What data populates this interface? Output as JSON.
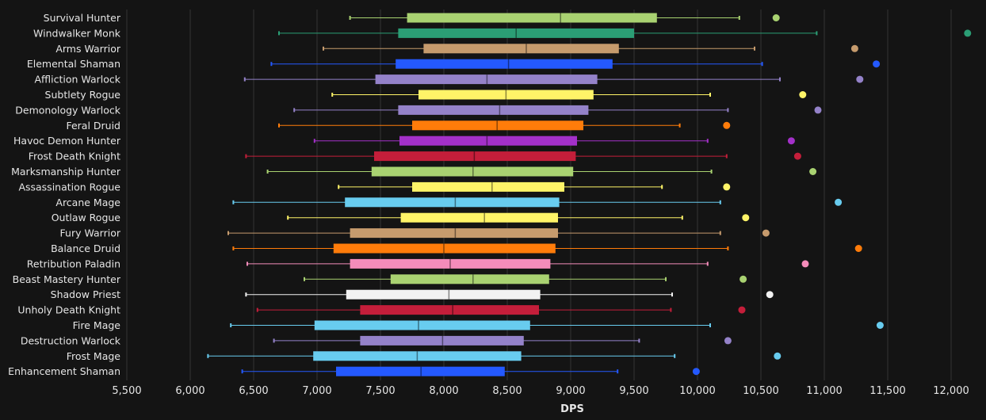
{
  "chart_data": {
    "type": "box",
    "xlabel": "DPS",
    "xlim": [
      5500,
      12200
    ],
    "xticks": [
      5500,
      6000,
      6500,
      7000,
      7500,
      8000,
      8500,
      9000,
      9500,
      10000,
      10500,
      11000,
      11500,
      12000
    ],
    "xtick_labels": [
      "5,500",
      "6,000",
      "6,500",
      "7,000",
      "7,500",
      "8,000",
      "8,500",
      "9,000",
      "9,500",
      "10,000",
      "10,500",
      "11,000",
      "11,500",
      "12,000"
    ],
    "grid": "vertical",
    "background": "#141414",
    "series": [
      {
        "name": "Survival Hunter",
        "color": "#a9d271",
        "min": 7260,
        "q1": 7710,
        "median": 8920,
        "q3": 9680,
        "max": 10330,
        "outlier": 10620
      },
      {
        "name": "Windwalker Monk",
        "color": "#2b9e75",
        "min": 6700,
        "q1": 7640,
        "median": 8570,
        "q3": 9500,
        "max": 10940,
        "outlier": 12130
      },
      {
        "name": "Arms Warrior",
        "color": "#c69b6d",
        "min": 7050,
        "q1": 7840,
        "median": 8650,
        "q3": 9380,
        "max": 10450,
        "outlier": 11240
      },
      {
        "name": "Elemental Shaman",
        "color": "#2459ff",
        "min": 6640,
        "q1": 7620,
        "median": 8510,
        "q3": 9330,
        "max": 10510,
        "outlier": 11410
      },
      {
        "name": "Affliction Warlock",
        "color": "#9482c9",
        "min": 6430,
        "q1": 7460,
        "median": 8340,
        "q3": 9210,
        "max": 10650,
        "outlier": 11280
      },
      {
        "name": "Subtlety Rogue",
        "color": "#fff468",
        "min": 7120,
        "q1": 7800,
        "median": 8490,
        "q3": 9180,
        "max": 10100,
        "outlier": 10830
      },
      {
        "name": "Demonology Warlock",
        "color": "#9482c9",
        "min": 6820,
        "q1": 7640,
        "median": 8440,
        "q3": 9140,
        "max": 10240,
        "outlier": 10950
      },
      {
        "name": "Feral Druid",
        "color": "#ff7c0a",
        "min": 6700,
        "q1": 7750,
        "median": 8420,
        "q3": 9100,
        "max": 9860,
        "outlier": 10230
      },
      {
        "name": "Havoc Demon Hunter",
        "color": "#a330c9",
        "min": 6980,
        "q1": 7650,
        "median": 8340,
        "q3": 9050,
        "max": 10080,
        "outlier": 10740
      },
      {
        "name": "Frost Death Knight",
        "color": "#c41e3a",
        "min": 6440,
        "q1": 7450,
        "median": 8240,
        "q3": 9040,
        "max": 10230,
        "outlier": 10790
      },
      {
        "name": "Marksmanship Hunter",
        "color": "#a9d271",
        "min": 6610,
        "q1": 7430,
        "median": 8230,
        "q3": 9020,
        "max": 10110,
        "outlier": 10910
      },
      {
        "name": "Assassination Rogue",
        "color": "#fff468",
        "min": 7170,
        "q1": 7750,
        "median": 8380,
        "q3": 8950,
        "max": 9720,
        "outlier": 10230
      },
      {
        "name": "Arcane Mage",
        "color": "#68ccef",
        "min": 6340,
        "q1": 7220,
        "median": 8090,
        "q3": 8910,
        "max": 10180,
        "outlier": 11110
      },
      {
        "name": "Outlaw Rogue",
        "color": "#fff468",
        "min": 6770,
        "q1": 7660,
        "median": 8320,
        "q3": 8900,
        "max": 9880,
        "outlier": 10380
      },
      {
        "name": "Fury Warrior",
        "color": "#c69b6d",
        "min": 6300,
        "q1": 7260,
        "median": 8090,
        "q3": 8900,
        "max": 10180,
        "outlier": 10540
      },
      {
        "name": "Balance Druid",
        "color": "#ff7c0a",
        "min": 6340,
        "q1": 7130,
        "median": 8000,
        "q3": 8880,
        "max": 10240,
        "outlier": 11270
      },
      {
        "name": "Retribution Paladin",
        "color": "#f48cba",
        "min": 6450,
        "q1": 7260,
        "median": 8050,
        "q3": 8840,
        "max": 10080,
        "outlier": 10850
      },
      {
        "name": "Beast Mastery Hunter",
        "color": "#a9d271",
        "min": 6900,
        "q1": 7580,
        "median": 8230,
        "q3": 8830,
        "max": 9750,
        "outlier": 10360
      },
      {
        "name": "Shadow Priest",
        "color": "#f2f2f2",
        "min": 6440,
        "q1": 7230,
        "median": 8040,
        "q3": 8760,
        "max": 9800,
        "outlier": 10570
      },
      {
        "name": "Unholy Death Knight",
        "color": "#c41e3a",
        "min": 6530,
        "q1": 7340,
        "median": 8070,
        "q3": 8750,
        "max": 9790,
        "outlier": 10350
      },
      {
        "name": "Fire Mage",
        "color": "#68ccef",
        "min": 6320,
        "q1": 6980,
        "median": 7800,
        "q3": 8680,
        "max": 10100,
        "outlier": 11440
      },
      {
        "name": "Destruction Warlock",
        "color": "#9482c9",
        "min": 6660,
        "q1": 7340,
        "median": 7990,
        "q3": 8630,
        "max": 9540,
        "outlier": 10240
      },
      {
        "name": "Frost Mage",
        "color": "#68ccef",
        "min": 6140,
        "q1": 6970,
        "median": 7790,
        "q3": 8610,
        "max": 9820,
        "outlier": 10630
      },
      {
        "name": "Enhancement Shaman",
        "color": "#2459ff",
        "min": 6410,
        "q1": 7150,
        "median": 7820,
        "q3": 8480,
        "max": 9370,
        "outlier": 9990
      }
    ]
  }
}
